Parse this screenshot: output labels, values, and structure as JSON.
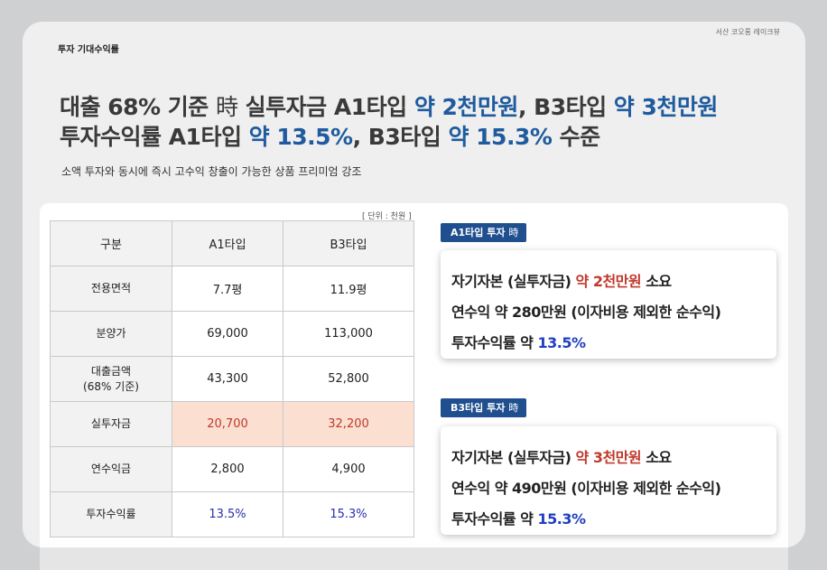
{
  "top_label": "투자 기대수익률",
  "brand": "서산 코오롱 레이크뷰",
  "headline": {
    "line1": {
      "p1": "대출 68% 기준 ",
      "ji": "時",
      "p2": " 실투자금 A1타입 ",
      "b1": "약 2천만원",
      "p3": ", B3타입 ",
      "b2": "약 3천만원"
    },
    "line2": {
      "p1": "투자수익률 A1타입 ",
      "b1": "약 13.5%",
      "p2": ", B3타입 ",
      "b2": "약 15.3%",
      "p3": " 수준"
    }
  },
  "subline": "소액 투자와 동시에 즉시 고수익 창출이 가능한 상품 프리미엄 강조",
  "unit": "[ 단위 : 천원 ]",
  "table": {
    "headers": [
      "구분",
      "A1타입",
      "B3타입"
    ],
    "rows": [
      {
        "label": "전용면적",
        "a1": "7.7평",
        "b3": "11.9평"
      },
      {
        "label": "분양가",
        "a1": "69,000",
        "b3": "113,000"
      },
      {
        "label1": "대출금액",
        "label2": "(68% 기준)",
        "a1": "43,300",
        "b3": "52,800"
      },
      {
        "label": "실투자금",
        "a1": "20,700",
        "b3": "32,200"
      },
      {
        "label": "연수익금",
        "a1": "2,800",
        "b3": "4,900"
      },
      {
        "label": "투자수익률",
        "a1": "13.5%",
        "b3": "15.3%"
      }
    ]
  },
  "a1_box": {
    "tag": "A1타입 투자",
    "tag_ji": "時",
    "line1_pre": "자기자본 (실투자금) ",
    "line1_hl": "약 2천만원",
    "line1_post": " 소요",
    "line2": "연수익 약 280만원 (이자비용 제외한 순수익)",
    "line3_pre": "투자수익률 약 ",
    "line3_hl": "13.5%"
  },
  "b3_box": {
    "tag": "B3타입 투자",
    "tag_ji": "時",
    "line1_pre": "자기자본 (실투자금) ",
    "line1_hl": "약 3천만원",
    "line1_post": " 소요",
    "line2": "연수익 약 490만원 (이자비용 제외한 순수익)",
    "line3_pre": "투자수익률 약 ",
    "line3_hl": "15.3%"
  },
  "colors": {
    "accent_blue": "#1f5b9e",
    "accent_red": "#c0392b",
    "highlight_bg": "#fbe0d2",
    "tag_bg": "#1f4f8e"
  }
}
